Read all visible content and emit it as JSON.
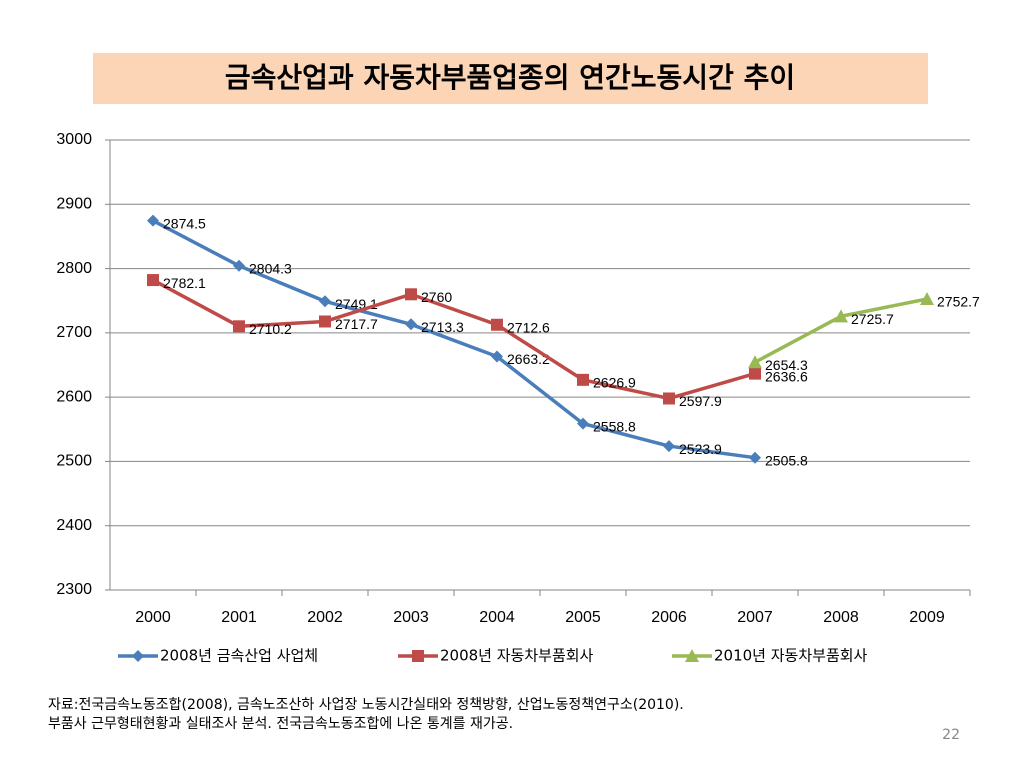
{
  "chart_data": {
    "type": "line",
    "title": "금속산업과 자동차부품업종의 연간노동시간 추이",
    "categories": [
      "2000",
      "2001",
      "2002",
      "2003",
      "2004",
      "2005",
      "2006",
      "2007",
      "2008",
      "2009"
    ],
    "series": [
      {
        "name": "2008년 금속산업 사업체",
        "color": "#4a7ebb",
        "marker": "diamond",
        "values": [
          2874.5,
          2804.3,
          2749.1,
          2713.3,
          2663.2,
          2558.8,
          2523.9,
          2505.8,
          null,
          null
        ]
      },
      {
        "name": "2008년 자동차부품회사",
        "color": "#be4b48",
        "marker": "square",
        "values": [
          2782.1,
          2710.2,
          2717.7,
          2760,
          2712.6,
          2626.9,
          2597.9,
          2636.6,
          null,
          null
        ]
      },
      {
        "name": "2010년 자동차부품회사",
        "color": "#98b954",
        "marker": "triangle",
        "values": [
          null,
          null,
          null,
          null,
          null,
          null,
          null,
          2654.3,
          2725.7,
          2752.7
        ]
      }
    ],
    "ylim": [
      2300,
      3000
    ],
    "yticks": [
      2300,
      2400,
      2500,
      2600,
      2700,
      2800,
      2900,
      3000
    ],
    "grid": true,
    "legend": "bottom"
  },
  "source": [
    "자료:전국금속노동조합(2008), 금속노조산하 사업장 노동시간실태와 정책방향, 산업노동정책연구소(2010).",
    "부품사 근무형태현황과 실태조사 분석. 전국금속노동조합에 나온 통계를 재가공."
  ],
  "page_number": "22"
}
